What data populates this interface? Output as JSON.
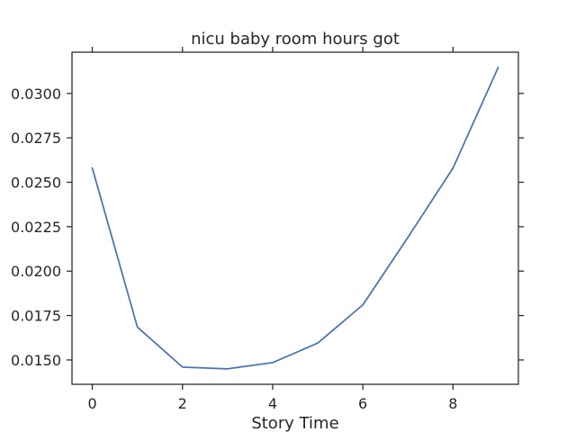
{
  "chart_data": {
    "type": "line",
    "title": "nicu baby room hours got",
    "xlabel": "Story Time",
    "ylabel": "",
    "x": [
      0,
      1,
      2,
      3,
      4,
      5,
      6,
      7,
      8,
      9
    ],
    "series": [
      {
        "values": [
          0.0258,
          0.01685,
          0.0146,
          0.0145,
          0.01485,
          0.01595,
          0.0181,
          0.0219,
          0.0258,
          0.03145
        ]
      }
    ],
    "xlim": [
      -0.45,
      9.45
    ],
    "ylim": [
      0.01363,
      0.03232
    ],
    "xticks": [
      0,
      2,
      4,
      6,
      8
    ],
    "yticks": [
      0.015,
      0.0175,
      0.02,
      0.0225,
      0.025,
      0.0275,
      0.03
    ],
    "xtick_labels": [
      "0",
      "2",
      "4",
      "6",
      "8"
    ],
    "ytick_labels": [
      "0.0150",
      "0.0175",
      "0.0200",
      "0.0225",
      "0.0250",
      "0.0275",
      "0.0300"
    ],
    "grid": false,
    "line_color": "#4c72b0",
    "axis_color": "#262626"
  }
}
